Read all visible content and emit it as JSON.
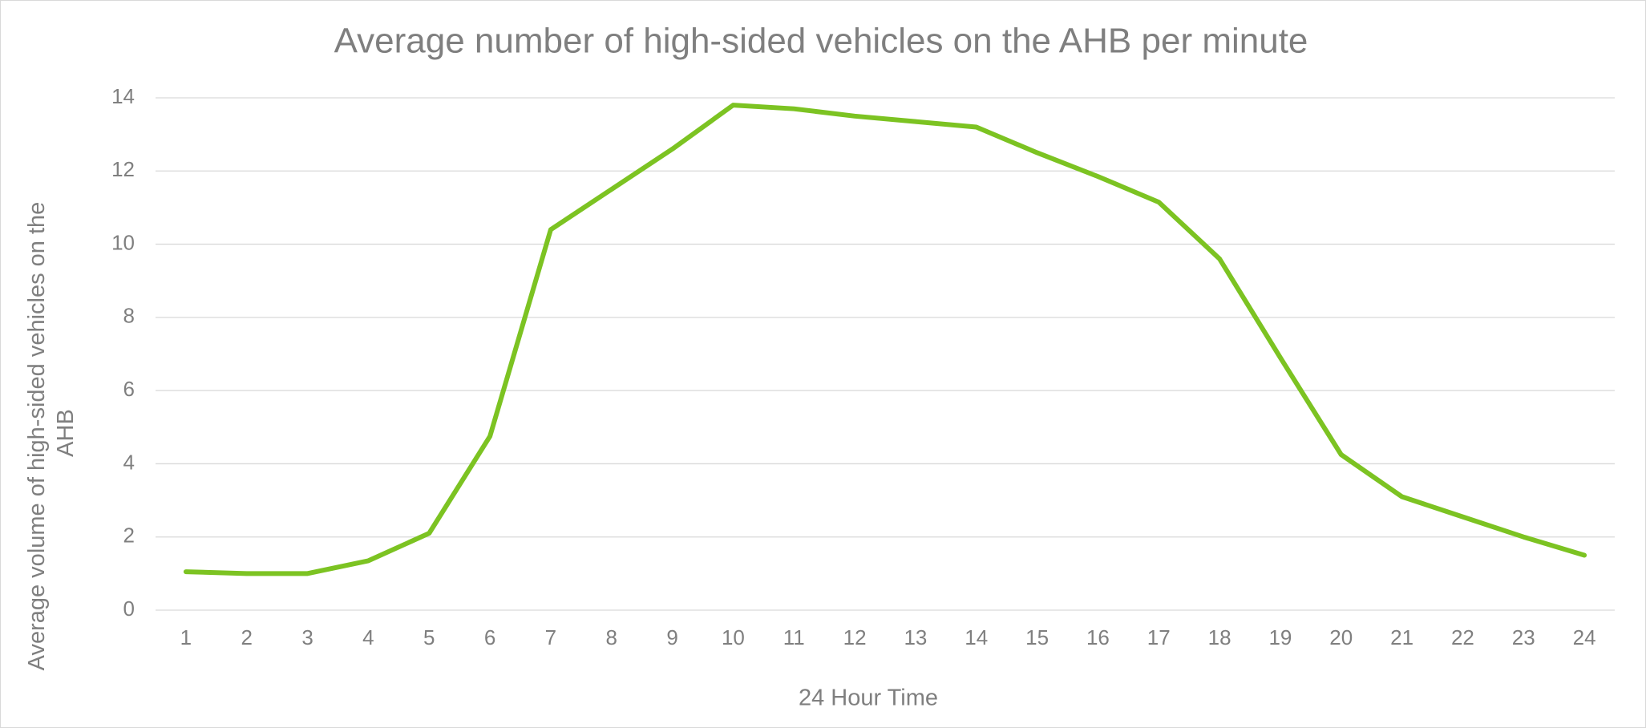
{
  "chart_data": {
    "type": "line",
    "title": "Average number of high-sided vehicles on the AHB per minute",
    "x_label": "24 Hour Time",
    "y_label": "Average volume of high-sided vehicles on the AHB",
    "categories": [
      "1",
      "2",
      "3",
      "4",
      "5",
      "6",
      "7",
      "8",
      "9",
      "10",
      "11",
      "12",
      "13",
      "14",
      "15",
      "16",
      "17",
      "18",
      "19",
      "20",
      "21",
      "22",
      "23",
      "24"
    ],
    "series": [
      {
        "name": "High-sided vehicles",
        "color": "#7cc322",
        "values": [
          1.05,
          1.0,
          1.0,
          1.35,
          2.1,
          4.75,
          10.4,
          11.5,
          12.6,
          13.8,
          13.7,
          13.5,
          13.35,
          13.2,
          12.5,
          11.85,
          11.15,
          9.6,
          6.9,
          4.25,
          3.1,
          2.55,
          2.0,
          1.5
        ]
      }
    ],
    "ylim": [
      0,
      14
    ],
    "yticks": [
      0,
      2,
      4,
      6,
      8,
      10,
      12,
      14
    ],
    "grid": true
  }
}
